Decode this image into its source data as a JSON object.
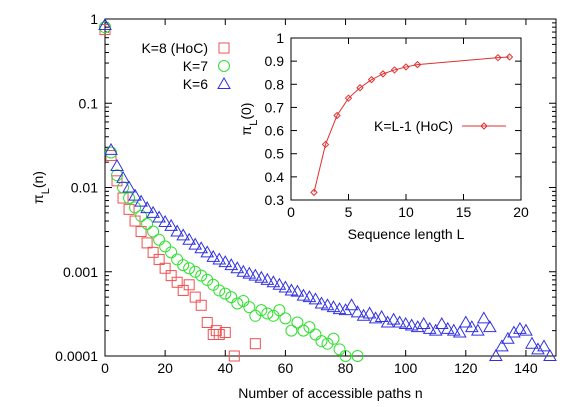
{
  "chart_data": [
    {
      "type": "scatter",
      "xlabel": "Number of accessible paths n",
      "ylabel": "π_L(n)",
      "xlim": [
        0,
        150
      ],
      "ylim": [
        0.0001,
        1
      ],
      "yscale": "log",
      "x_ticks": [
        "0",
        "20",
        "40",
        "60",
        "80",
        "100",
        "120",
        "140"
      ],
      "y_ticks": [
        "0.0001",
        "0.001",
        "0.01",
        "0.1",
        "1"
      ],
      "legend_position": "top-center",
      "series": [
        {
          "name": "K=8 (HoC)",
          "marker": "square",
          "color": "#f05050",
          "points": [
            [
              0,
              0.75
            ],
            [
              2,
              0.024
            ],
            [
              4,
              0.012
            ],
            [
              6,
              0.0075
            ],
            [
              8,
              0.0055
            ],
            [
              10,
              0.004
            ],
            [
              12,
              0.003
            ],
            [
              14,
              0.0022
            ],
            [
              16,
              0.0017
            ],
            [
              18,
              0.0014
            ],
            [
              20,
              0.0011
            ],
            [
              22,
              0.0009
            ],
            [
              24,
              0.00075
            ],
            [
              26,
              0.0006
            ],
            [
              28,
              0.0007
            ],
            [
              30,
              0.0005
            ],
            [
              32,
              0.0004
            ],
            [
              34,
              0.00025
            ],
            [
              36,
              0.00018
            ],
            [
              37,
              0.0002
            ],
            [
              38,
              0.00018
            ],
            [
              40,
              0.00019
            ],
            [
              43,
              0.0001
            ],
            [
              50,
              0.00014
            ]
          ]
        },
        {
          "name": "K=7",
          "marker": "circle",
          "color": "#30e030",
          "points": [
            [
              0,
              0.8
            ],
            [
              2,
              0.026
            ],
            [
              4,
              0.014
            ],
            [
              6,
              0.01
            ],
            [
              8,
              0.0075
            ],
            [
              10,
              0.0058
            ],
            [
              12,
              0.0046
            ],
            [
              14,
              0.0037
            ],
            [
              16,
              0.003
            ],
            [
              18,
              0.0024
            ],
            [
              20,
              0.002
            ],
            [
              22,
              0.0017
            ],
            [
              24,
              0.0014
            ],
            [
              26,
              0.0012
            ],
            [
              28,
              0.0011
            ],
            [
              30,
              0.001
            ],
            [
              32,
              0.0009
            ],
            [
              34,
              0.0008
            ],
            [
              36,
              0.0007
            ],
            [
              38,
              0.0006
            ],
            [
              40,
              0.00055
            ],
            [
              42,
              0.0005
            ],
            [
              44,
              0.00042
            ],
            [
              46,
              0.00045
            ],
            [
              48,
              0.00038
            ],
            [
              50,
              0.0003
            ],
            [
              52,
              0.00035
            ],
            [
              54,
              0.00032
            ],
            [
              56,
              0.0003
            ],
            [
              58,
              0.00035
            ],
            [
              60,
              0.00028
            ],
            [
              62,
              0.0002
            ],
            [
              64,
              0.00025
            ],
            [
              66,
              0.0002
            ],
            [
              68,
              0.00022
            ],
            [
              70,
              0.00018
            ],
            [
              72,
              0.00015
            ],
            [
              74,
              0.00014
            ],
            [
              76,
              0.00016
            ],
            [
              78,
              0.00012
            ],
            [
              80,
              0.0001
            ],
            [
              84,
              0.0001
            ]
          ]
        },
        {
          "name": "K=6",
          "marker": "triangle",
          "color": "#3030e0",
          "points": [
            [
              0,
              0.85
            ],
            [
              2,
              0.028
            ],
            [
              4,
              0.018
            ],
            [
              6,
              0.013
            ],
            [
              8,
              0.01
            ],
            [
              10,
              0.008
            ],
            [
              12,
              0.0068
            ],
            [
              14,
              0.0057
            ],
            [
              16,
              0.005
            ],
            [
              18,
              0.0044
            ],
            [
              20,
              0.0039
            ],
            [
              22,
              0.0035
            ],
            [
              24,
              0.003
            ],
            [
              26,
              0.0027
            ],
            [
              28,
              0.0024
            ],
            [
              30,
              0.0021
            ],
            [
              32,
              0.0019
            ],
            [
              34,
              0.0017
            ],
            [
              36,
              0.0015
            ],
            [
              38,
              0.0014
            ],
            [
              40,
              0.0013
            ],
            [
              42,
              0.0012
            ],
            [
              44,
              0.0011
            ],
            [
              46,
              0.001
            ],
            [
              48,
              0.00095
            ],
            [
              50,
              0.0009
            ],
            [
              52,
              0.00085
            ],
            [
              54,
              0.0008
            ],
            [
              56,
              0.00075
            ],
            [
              58,
              0.0007
            ],
            [
              60,
              0.00065
            ],
            [
              62,
              0.0006
            ],
            [
              64,
              0.00058
            ],
            [
              66,
              0.00052
            ],
            [
              68,
              0.0005
            ],
            [
              70,
              0.00047
            ],
            [
              72,
              0.00042
            ],
            [
              74,
              0.0004
            ],
            [
              76,
              0.00038
            ],
            [
              78,
              0.00036
            ],
            [
              80,
              0.00035
            ],
            [
              82,
              0.0004
            ],
            [
              84,
              0.00033
            ],
            [
              86,
              0.0003
            ],
            [
              88,
              0.00032
            ],
            [
              90,
              0.00028
            ],
            [
              92,
              0.00029
            ],
            [
              94,
              0.00025
            ],
            [
              96,
              0.00027
            ],
            [
              98,
              0.00025
            ],
            [
              100,
              0.00024
            ],
            [
              102,
              0.00023
            ],
            [
              104,
              0.00022
            ],
            [
              106,
              0.00024
            ],
            [
              108,
              0.00021
            ],
            [
              110,
              0.0002
            ],
            [
              112,
              0.00024
            ],
            [
              114,
              0.00021
            ],
            [
              116,
              0.0002
            ],
            [
              118,
              0.00019
            ],
            [
              120,
              0.00025
            ],
            [
              122,
              0.00022
            ],
            [
              124,
              0.0002
            ],
            [
              126,
              0.00028
            ],
            [
              128,
              0.00022
            ],
            [
              130,
              0.0001
            ],
            [
              132,
              0.00013
            ],
            [
              134,
              0.00016
            ],
            [
              136,
              0.00019
            ],
            [
              138,
              0.00021
            ],
            [
              140,
              0.0002
            ],
            [
              142,
              0.00014
            ],
            [
              144,
              0.00012
            ],
            [
              146,
              0.00013
            ],
            [
              148,
              0.0001
            ]
          ]
        }
      ]
    },
    {
      "type": "line",
      "xlabel": "Sequence length L",
      "ylabel": "π_L(0)",
      "xlim": [
        0,
        20
      ],
      "ylim": [
        0.3,
        1
      ],
      "x_ticks": [
        "0",
        "5",
        "10",
        "15",
        "20"
      ],
      "y_ticks": [
        "0.3",
        "0.4",
        "0.5",
        "0.6",
        "0.7",
        "0.8",
        "0.9",
        "1"
      ],
      "legend_position": "center-right",
      "series": [
        {
          "name": "K=L-1 (HoC)",
          "marker": "diamond",
          "color": "#e03030",
          "x": [
            2,
            3,
            4,
            5,
            6,
            7,
            8,
            9,
            10,
            11,
            18,
            19
          ],
          "y": [
            0.333,
            0.54,
            0.665,
            0.74,
            0.785,
            0.82,
            0.845,
            0.862,
            0.875,
            0.885,
            0.915,
            0.918
          ]
        }
      ]
    }
  ]
}
